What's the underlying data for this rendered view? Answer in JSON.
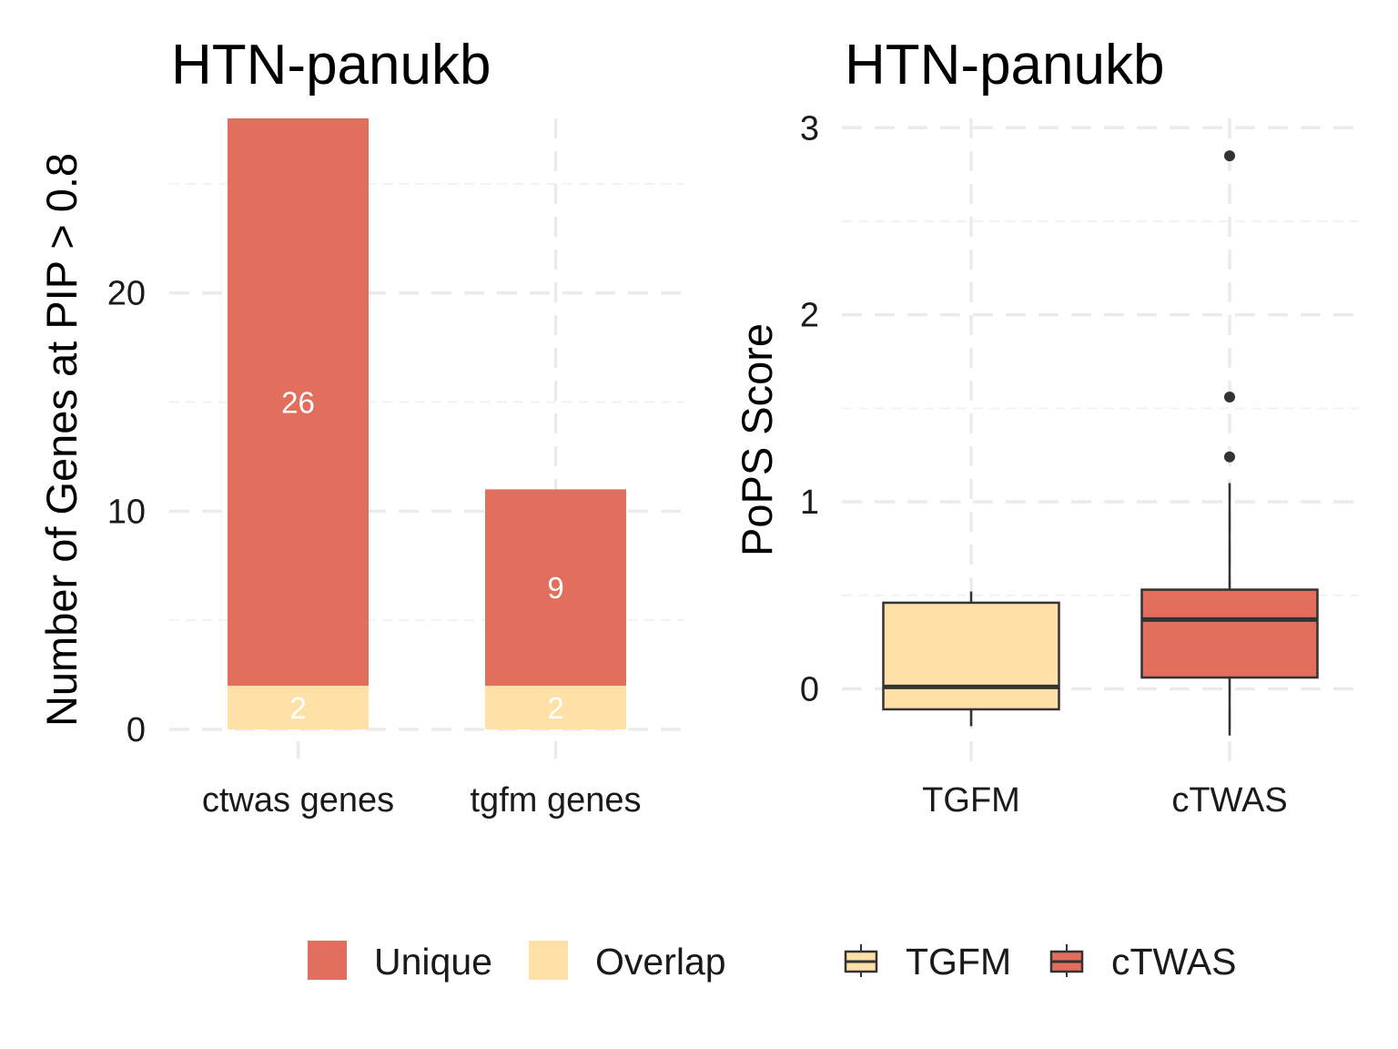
{
  "chart_data": [
    {
      "type": "bar",
      "stacked": true,
      "title": "HTN-panukb",
      "xlabel": "",
      "ylabel": "Number of Genes at PIP > 0.8",
      "categories": [
        "ctwas genes",
        "tgfm genes"
      ],
      "series": [
        {
          "name": "Overlap",
          "values": [
            2,
            2
          ],
          "color": "#FFE0A6"
        },
        {
          "name": "Unique",
          "values": [
            26,
            9
          ],
          "color": "#E26E5E"
        }
      ],
      "ylim": [
        0,
        28
      ],
      "yticks": [
        0,
        10,
        20
      ],
      "legend": {
        "position": "bottom",
        "entries": [
          "Unique",
          "Overlap"
        ]
      }
    },
    {
      "type": "box",
      "title": "HTN-panukb",
      "xlabel": "",
      "ylabel": "PoPS Score",
      "categories": [
        "TGFM",
        "cTWAS"
      ],
      "boxes": [
        {
          "name": "TGFM",
          "lower_whisker": -0.2,
          "q1": -0.11,
          "median": 0.01,
          "q3": 0.46,
          "upper_whisker": 0.52,
          "outliers": [],
          "color": "#FFE0A6"
        },
        {
          "name": "cTWAS",
          "lower_whisker": -0.25,
          "q1": 0.06,
          "median": 0.37,
          "q3": 0.53,
          "upper_whisker": 1.1,
          "outliers": [
            1.24,
            1.56,
            2.85
          ],
          "color": "#E26E5E"
        }
      ],
      "ylim": [
        -0.3,
        3.05
      ],
      "yticks": [
        0,
        1,
        2,
        3
      ],
      "legend": {
        "position": "bottom",
        "entries": [
          "TGFM",
          "cTWAS"
        ]
      }
    }
  ]
}
